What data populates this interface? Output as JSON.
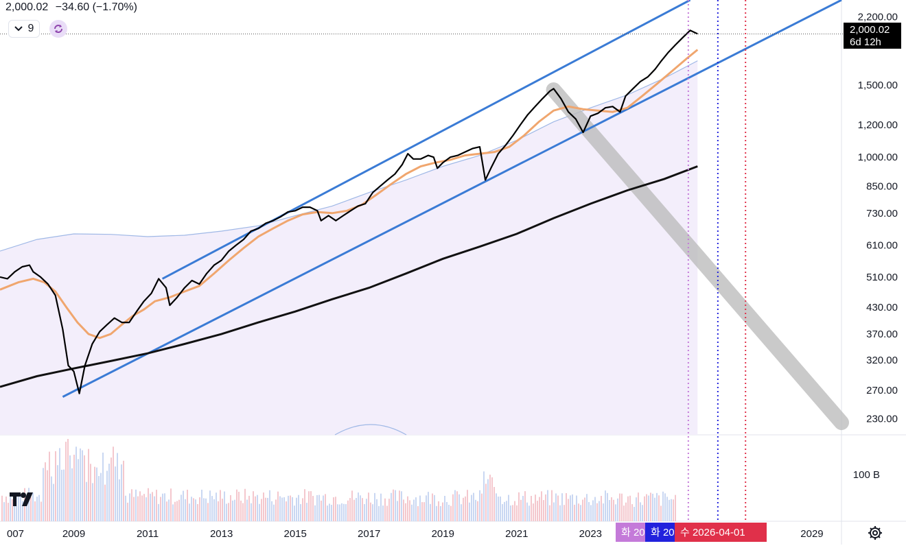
{
  "header": {
    "price": "2,000.02",
    "change": "−34.60 (−1.70%)"
  },
  "controls": {
    "interval_value": "9",
    "chevron_icon": "chevron-down-icon",
    "refresh_icon": "refresh-icon"
  },
  "price_tag": {
    "price": "2,000.02",
    "countdown": "6d 12h"
  },
  "volume_axis_label": "100 B",
  "date_markers": {
    "purple": "화 20",
    "blue": "화 20",
    "red": "수 2026-04-01"
  },
  "logo": "tradingview-logo",
  "settings_icon": "gear-icon",
  "colors": {
    "price": "#000000",
    "ma_orange": "#f0a66e",
    "ma_black": "#111111",
    "channel": "#3a7bd5",
    "envelope": "#9fb8e6",
    "purple_marker": "#c47ad9",
    "blue_marker": "#2222dd",
    "red_marker": "#e0304a",
    "projection": "#bdbdbd"
  },
  "chart_data": {
    "type": "line",
    "scale": "log",
    "ylim": [
      210,
      2420
    ],
    "xlim": [
      2007.0,
      2029.8
    ],
    "yticks": [
      "2,200.00",
      "1,500.00",
      "1,200.00",
      "1,000.00",
      "850.00",
      "730.00",
      "610.00",
      "510.00",
      "430.00",
      "370.00",
      "320.00",
      "270.00",
      "230.00"
    ],
    "ytick_values": [
      2200,
      1500,
      1200,
      1000,
      850,
      730,
      610,
      510,
      430,
      370,
      320,
      270,
      230
    ],
    "xticks": [
      "007",
      "2009",
      "2011",
      "2013",
      "2015",
      "2017",
      "2019",
      "2021",
      "2023",
      "2029"
    ],
    "xtick_values": [
      2007,
      2009,
      2011,
      2013,
      2015,
      2017,
      2019,
      2021,
      2023,
      2029
    ],
    "series": [
      {
        "id": "price",
        "points": [
          [
            2007.0,
            510
          ],
          [
            2007.2,
            505
          ],
          [
            2007.4,
            525
          ],
          [
            2007.6,
            540
          ],
          [
            2007.8,
            545
          ],
          [
            2007.9,
            525
          ],
          [
            2008.1,
            510
          ],
          [
            2008.3,
            490
          ],
          [
            2008.5,
            460
          ],
          [
            2008.7,
            380
          ],
          [
            2008.85,
            310
          ],
          [
            2009.0,
            300
          ],
          [
            2009.15,
            265
          ],
          [
            2009.3,
            310
          ],
          [
            2009.5,
            350
          ],
          [
            2009.7,
            375
          ],
          [
            2009.9,
            390
          ],
          [
            2010.1,
            405
          ],
          [
            2010.3,
            395
          ],
          [
            2010.5,
            395
          ],
          [
            2010.7,
            420
          ],
          [
            2010.9,
            445
          ],
          [
            2011.1,
            465
          ],
          [
            2011.3,
            505
          ],
          [
            2011.5,
            480
          ],
          [
            2011.6,
            435
          ],
          [
            2011.8,
            455
          ],
          [
            2012.0,
            480
          ],
          [
            2012.2,
            500
          ],
          [
            2012.4,
            490
          ],
          [
            2012.6,
            520
          ],
          [
            2012.8,
            545
          ],
          [
            2013.0,
            560
          ],
          [
            2013.2,
            590
          ],
          [
            2013.4,
            610
          ],
          [
            2013.6,
            630
          ],
          [
            2013.8,
            660
          ],
          [
            2014.0,
            670
          ],
          [
            2014.2,
            690
          ],
          [
            2014.4,
            700
          ],
          [
            2014.6,
            715
          ],
          [
            2014.8,
            735
          ],
          [
            2015.0,
            740
          ],
          [
            2015.2,
            755
          ],
          [
            2015.4,
            755
          ],
          [
            2015.6,
            740
          ],
          [
            2015.7,
            700
          ],
          [
            2015.9,
            720
          ],
          [
            2016.1,
            700
          ],
          [
            2016.3,
            720
          ],
          [
            2016.5,
            740
          ],
          [
            2016.7,
            760
          ],
          [
            2016.9,
            770
          ],
          [
            2017.1,
            820
          ],
          [
            2017.3,
            850
          ],
          [
            2017.5,
            880
          ],
          [
            2017.7,
            910
          ],
          [
            2017.9,
            960
          ],
          [
            2018.05,
            1020
          ],
          [
            2018.2,
            990
          ],
          [
            2018.4,
            990
          ],
          [
            2018.6,
            1010
          ],
          [
            2018.75,
            1000
          ],
          [
            2018.85,
            940
          ],
          [
            2019.0,
            970
          ],
          [
            2019.2,
            1000
          ],
          [
            2019.4,
            1010
          ],
          [
            2019.6,
            1030
          ],
          [
            2019.8,
            1050
          ],
          [
            2020.0,
            1060
          ],
          [
            2020.15,
            880
          ],
          [
            2020.3,
            940
          ],
          [
            2020.5,
            1020
          ],
          [
            2020.7,
            1070
          ],
          [
            2020.9,
            1130
          ],
          [
            2021.1,
            1200
          ],
          [
            2021.3,
            1270
          ],
          [
            2021.5,
            1330
          ],
          [
            2021.7,
            1390
          ],
          [
            2021.9,
            1450
          ],
          [
            2022.0,
            1470
          ],
          [
            2022.2,
            1390
          ],
          [
            2022.4,
            1290
          ],
          [
            2022.6,
            1240
          ],
          [
            2022.8,
            1150
          ],
          [
            2023.0,
            1260
          ],
          [
            2023.2,
            1280
          ],
          [
            2023.4,
            1320
          ],
          [
            2023.6,
            1330
          ],
          [
            2023.8,
            1290
          ],
          [
            2023.95,
            1410
          ],
          [
            2024.15,
            1470
          ],
          [
            2024.35,
            1530
          ],
          [
            2024.55,
            1570
          ],
          [
            2024.75,
            1640
          ],
          [
            2024.9,
            1710
          ],
          [
            2025.1,
            1800
          ],
          [
            2025.3,
            1880
          ],
          [
            2025.5,
            1960
          ],
          [
            2025.7,
            2040
          ],
          [
            2025.9,
            2000
          ]
        ]
      },
      {
        "id": "ma_orange",
        "points": [
          [
            2007.0,
            475
          ],
          [
            2007.5,
            495
          ],
          [
            2007.9,
            505
          ],
          [
            2008.2,
            495
          ],
          [
            2008.5,
            470
          ],
          [
            2008.8,
            430
          ],
          [
            2009.1,
            395
          ],
          [
            2009.4,
            370
          ],
          [
            2009.7,
            362
          ],
          [
            2010.0,
            370
          ],
          [
            2010.3,
            390
          ],
          [
            2010.6,
            410
          ],
          [
            2010.9,
            425
          ],
          [
            2011.2,
            445
          ],
          [
            2011.6,
            455
          ],
          [
            2012.0,
            470
          ],
          [
            2012.4,
            485
          ],
          [
            2012.8,
            520
          ],
          [
            2013.2,
            560
          ],
          [
            2013.6,
            600
          ],
          [
            2014.0,
            640
          ],
          [
            2014.4,
            670
          ],
          [
            2014.8,
            700
          ],
          [
            2015.2,
            725
          ],
          [
            2015.6,
            735
          ],
          [
            2016.0,
            730
          ],
          [
            2016.4,
            740
          ],
          [
            2016.8,
            765
          ],
          [
            2017.2,
            810
          ],
          [
            2017.6,
            860
          ],
          [
            2018.0,
            910
          ],
          [
            2018.4,
            950
          ],
          [
            2018.8,
            970
          ],
          [
            2019.2,
            985
          ],
          [
            2019.6,
            1010
          ],
          [
            2020.0,
            1020
          ],
          [
            2020.4,
            1030
          ],
          [
            2020.8,
            1060
          ],
          [
            2021.2,
            1130
          ],
          [
            2021.6,
            1220
          ],
          [
            2022.0,
            1300
          ],
          [
            2022.4,
            1330
          ],
          [
            2022.8,
            1310
          ],
          [
            2023.2,
            1300
          ],
          [
            2023.6,
            1290
          ],
          [
            2024.0,
            1320
          ],
          [
            2024.4,
            1410
          ],
          [
            2024.8,
            1510
          ],
          [
            2025.2,
            1620
          ],
          [
            2025.6,
            1740
          ],
          [
            2025.9,
            1830
          ]
        ]
      },
      {
        "id": "ma_black",
        "points": [
          [
            2007.0,
            275
          ],
          [
            2008.0,
            292
          ],
          [
            2009.0,
            305
          ],
          [
            2010.0,
            318
          ],
          [
            2011.0,
            332
          ],
          [
            2012.0,
            350
          ],
          [
            2013.0,
            370
          ],
          [
            2014.0,
            395
          ],
          [
            2015.0,
            420
          ],
          [
            2016.0,
            450
          ],
          [
            2017.0,
            480
          ],
          [
            2018.0,
            520
          ],
          [
            2019.0,
            565
          ],
          [
            2020.0,
            605
          ],
          [
            2021.0,
            650
          ],
          [
            2022.0,
            710
          ],
          [
            2023.0,
            770
          ],
          [
            2024.0,
            830
          ],
          [
            2025.0,
            885
          ],
          [
            2025.9,
            950
          ]
        ]
      },
      {
        "id": "envelope",
        "points": [
          [
            2007.0,
            590
          ],
          [
            2008.0,
            630
          ],
          [
            2009.0,
            650
          ],
          [
            2010.0,
            648
          ],
          [
            2011.0,
            640
          ],
          [
            2012.0,
            645
          ],
          [
            2013.0,
            660
          ],
          [
            2014.0,
            680
          ],
          [
            2015.0,
            720
          ],
          [
            2016.0,
            760
          ],
          [
            2017.0,
            820
          ],
          [
            2018.0,
            880
          ],
          [
            2019.0,
            950
          ],
          [
            2020.0,
            1010
          ],
          [
            2021.0,
            1100
          ],
          [
            2022.0,
            1220
          ],
          [
            2023.0,
            1320
          ],
          [
            2024.0,
            1420
          ],
          [
            2025.0,
            1560
          ],
          [
            2025.9,
            1720
          ]
        ]
      },
      {
        "id": "channel_upper",
        "points": [
          [
            2011.4,
            505
          ],
          [
            2025.7,
            2420
          ]
        ]
      },
      {
        "id": "channel_lower",
        "points": [
          [
            2008.7,
            260
          ],
          [
            2029.8,
            2420
          ]
        ]
      },
      {
        "id": "projection",
        "points": [
          [
            2022.0,
            1460
          ],
          [
            2029.8,
            225
          ]
        ]
      },
      {
        "id": "volume",
        "points": []
      }
    ],
    "markers": [
      {
        "id": "purple",
        "x": 2025.65
      },
      {
        "id": "blue",
        "x": 2026.45
      },
      {
        "id": "red",
        "x": 2027.2
      }
    ],
    "grid": true,
    "legend": "none"
  }
}
